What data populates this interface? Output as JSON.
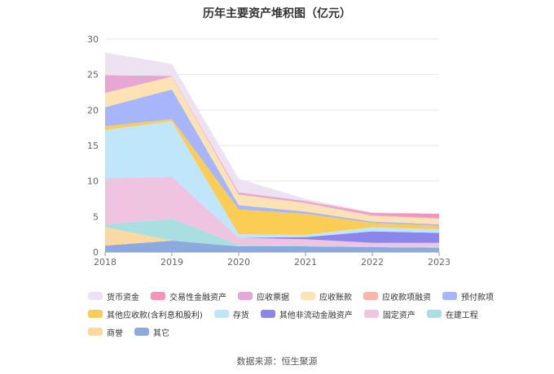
{
  "chart_data": {
    "type": "area",
    "stacked": true,
    "title": "历年主要资产堆积图（亿元）",
    "x": [
      "2018",
      "2019",
      "2020",
      "2021",
      "2022",
      "2023"
    ],
    "ylim": [
      0,
      30
    ],
    "yticks": [
      0,
      5,
      10,
      15,
      20,
      25,
      30
    ],
    "grid": true,
    "legend_position": "bottom",
    "series": [
      {
        "name": "其它",
        "color": "#8eaadc",
        "values": [
          0.9,
          1.6,
          0.8,
          0.8,
          0.7,
          0.6
        ]
      },
      {
        "name": "商誉",
        "color": "#fcd9a0",
        "values": [
          2.6,
          0.0,
          0.0,
          0.0,
          0.0,
          0.0
        ]
      },
      {
        "name": "在建工程",
        "color": "#a9dfe0",
        "values": [
          0.4,
          3.1,
          0.2,
          0.1,
          0.1,
          0.1
        ]
      },
      {
        "name": "固定资产",
        "color": "#efc4e0",
        "values": [
          6.5,
          5.9,
          1.0,
          0.9,
          0.5,
          0.6
        ]
      },
      {
        "name": "其他非流动金融资产",
        "color": "#8a86ea",
        "values": [
          0.0,
          0.0,
          0.0,
          0.3,
          1.6,
          1.4
        ]
      },
      {
        "name": "存货",
        "color": "#bfe6fb",
        "values": [
          6.8,
          7.8,
          0.5,
          0.3,
          0.6,
          0.5
        ]
      },
      {
        "name": "其他应收款(含利息和股利)",
        "color": "#fccd55",
        "values": [
          0.5,
          0.3,
          3.5,
          3.0,
          0.6,
          0.5
        ]
      },
      {
        "name": "预付款项",
        "color": "#a7b5fb",
        "values": [
          2.7,
          4.2,
          0.6,
          0.3,
          0.2,
          0.2
        ]
      },
      {
        "name": "应收款项融资",
        "color": "#fbb4a8",
        "values": [
          0.0,
          0.0,
          0.0,
          0.0,
          0.0,
          0.0
        ]
      },
      {
        "name": "应收账款",
        "color": "#fde3b4",
        "values": [
          2.0,
          1.8,
          1.5,
          1.2,
          0.8,
          0.8
        ]
      },
      {
        "name": "应收票据",
        "color": "#e7a7d4",
        "values": [
          2.4,
          0.0,
          0.3,
          0.3,
          0.2,
          0.1
        ]
      },
      {
        "name": "交易性金融资产",
        "color": "#f594b8",
        "values": [
          0.1,
          0.1,
          0.0,
          0.0,
          0.2,
          0.6
        ]
      },
      {
        "name": "货币资金",
        "color": "#ede2f1",
        "values": [
          3.2,
          1.7,
          1.9,
          0.3,
          0.1,
          0.0
        ]
      }
    ]
  },
  "legend_order": [
    "货币资金",
    "交易性金融资产",
    "应收票据",
    "应收账款",
    "应收款项融资",
    "预付款项",
    "其他应收款(含利息和股利)",
    "存货",
    "其他非流动金融资产",
    "固定资产",
    "在建工程",
    "商誉",
    "其它"
  ],
  "source_note": "数据来源：恒生聚源"
}
